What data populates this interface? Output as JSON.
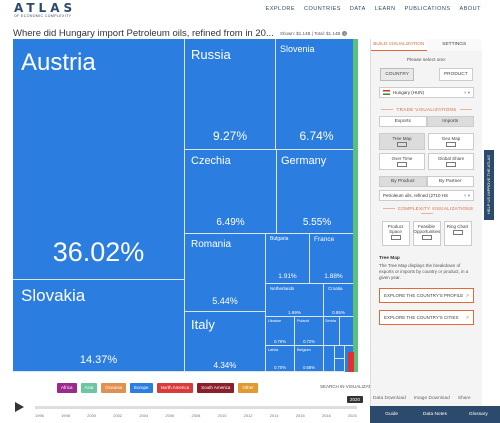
{
  "header": {
    "logo": "ATLAS",
    "logo_sub": "OF ECONOMIC COMPLEXITY",
    "nav": [
      "EXPLORE",
      "COUNTRIES",
      "DATA",
      "LEARN",
      "PUBLICATIONS",
      "ABOUT"
    ]
  },
  "title": "Where did Hungary import Petroleum oils, refined from in 20...",
  "shown": "Shown: $1.14B | Total: $1.14B",
  "treemap": [
    {
      "name": "Austria",
      "pct": "36.02%"
    },
    {
      "name": "Slovakia",
      "pct": "14.37%"
    },
    {
      "name": "Russia",
      "pct": "9.27%"
    },
    {
      "name": "Slovenia",
      "pct": "6.74%"
    },
    {
      "name": "Czechia",
      "pct": "6.49%"
    },
    {
      "name": "Germany",
      "pct": "5.55%"
    },
    {
      "name": "Romania",
      "pct": "5.44%"
    },
    {
      "name": "Italy",
      "pct": "4.34%"
    },
    {
      "name": "Bulgaria",
      "pct": "1.91%"
    },
    {
      "name": "France",
      "pct": "1.88%"
    },
    {
      "name": "Netherlands",
      "pct": "1.69%"
    },
    {
      "name": "Croatia",
      "pct": "0.85%"
    },
    {
      "name": "Ukraine",
      "pct": "0.76%"
    },
    {
      "name": "Poland",
      "pct": "0.72%"
    },
    {
      "name": "Serbia",
      "pct": ""
    },
    {
      "name": "Latvia",
      "pct": "0.70%"
    },
    {
      "name": "Belgium",
      "pct": "0.68%"
    }
  ],
  "legend": [
    {
      "label": "Africa",
      "color": "#9c2a8c"
    },
    {
      "label": "Asia",
      "color": "#6cc6a0"
    },
    {
      "label": "Oceania",
      "color": "#e0914f"
    },
    {
      "label": "Europe",
      "color": "#2b7de0"
    },
    {
      "label": "North America",
      "color": "#d93a3a"
    },
    {
      "label": "South America",
      "color": "#8a1e2a"
    },
    {
      "label": "Other",
      "color": "#e09a32"
    }
  ],
  "search_viz": "SEARCH IN VISUALIZATION",
  "timeline": {
    "years": [
      "1996",
      "1998",
      "2000",
      "2002",
      "2004",
      "2006",
      "2008",
      "2010",
      "2012",
      "2014",
      "2016",
      "2018",
      "2020"
    ],
    "current": "2020"
  },
  "panel": {
    "tabs": [
      "BUILD VISUALIZATION",
      "SETTINGS"
    ],
    "select_one": "Please select one:",
    "country_btn": "COUNTRY",
    "product_btn": "PRODUCT",
    "country_value": "Hungary (HUN)",
    "trade_title": "TRADE VISUALIZATIONS",
    "exports": "Exports",
    "imports": "Imports",
    "viz": [
      "Tree Map",
      "Geo Map",
      "Over Time",
      "Global Share"
    ],
    "by_product": "By Product",
    "by_partner": "By Partner",
    "product_value": "Petroleum oils, refined (2710 HS",
    "complexity_title": "COMPLEXITY VISUALIZATIONS",
    "complexity": [
      "Product Space",
      "Feasible Opportunities",
      "Ring Chart"
    ],
    "tm_title": "Tree Map",
    "tm_desc": "The Tree Map displays the breakdown of exports or imports by country or product, in a given year.",
    "explore_profile": "EXPLORE THE COUNTRY'S PROFILE",
    "explore_cities": "EXPLORE THE COUNTRY'S CITIES",
    "vertical": "HELP US IMPROVE THE ATLAS"
  },
  "downloads": [
    "Data Download",
    "Image Download",
    "Share"
  ],
  "bottombar": [
    "Guide",
    "Data Notes",
    "Glossary"
  ]
}
